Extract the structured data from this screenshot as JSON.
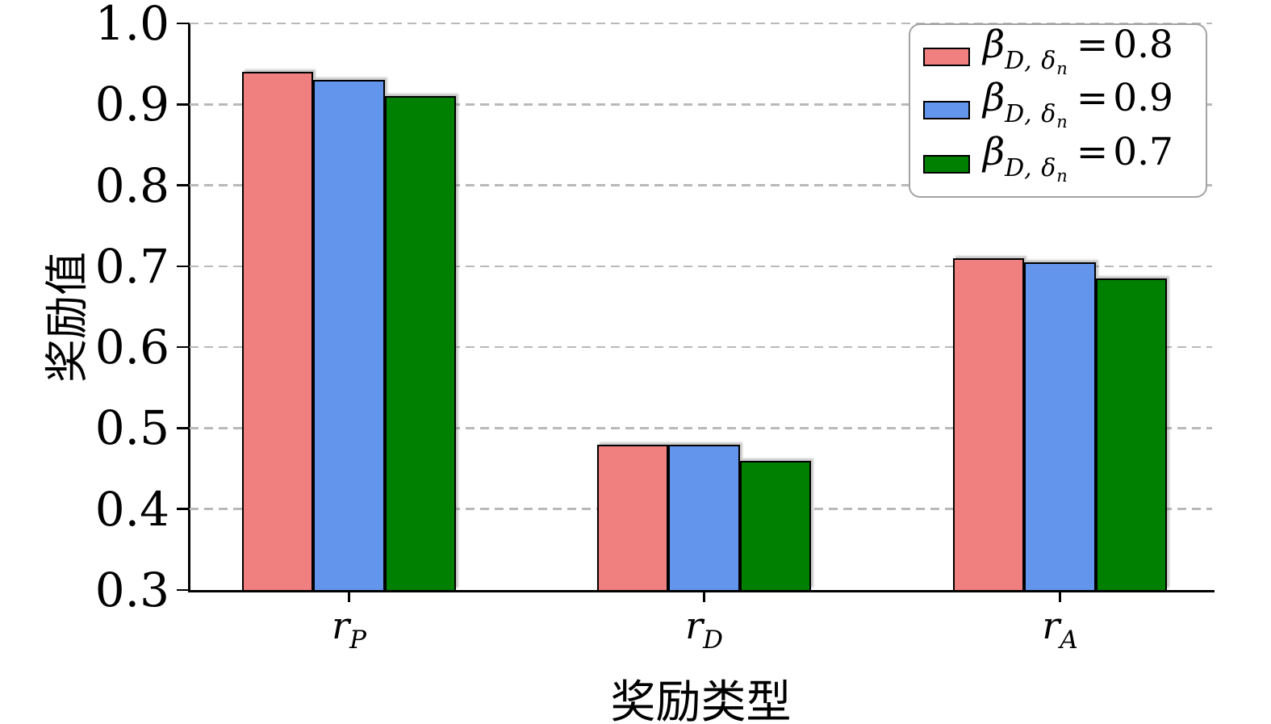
{
  "chart_data": {
    "type": "bar",
    "title": "",
    "xlabel": "奖励类型",
    "ylabel": "奖励值",
    "categories": [
      "r_P",
      "r_D",
      "r_A"
    ],
    "category_labels": [
      {
        "base": "r",
        "sub": "P"
      },
      {
        "base": "r",
        "sub": "D"
      },
      {
        "base": "r",
        "sub": "A"
      }
    ],
    "series": [
      {
        "name": "β_D,δn = 0.8",
        "color": "#f08080",
        "values": [
          0.94,
          0.48,
          0.71
        ]
      },
      {
        "name": "β_D,δn = 0.9",
        "color": "#6495ed",
        "values": [
          0.93,
          0.48,
          0.705
        ]
      },
      {
        "name": "β_D,δn = 0.7",
        "color": "#008000",
        "values": [
          0.91,
          0.46,
          0.685
        ]
      }
    ],
    "ylim": [
      0.3,
      1.0
    ],
    "ytick_values": [
      0.3,
      0.4,
      0.5,
      0.6,
      0.7,
      0.8,
      0.9,
      1.0
    ],
    "ytick_labels": [
      "0.3",
      "0.4",
      "0.5",
      "0.6",
      "0.7",
      "0.8",
      "0.9",
      "1.0"
    ],
    "grid": "horizontal-dashed",
    "grid_color": "#b9b9b9",
    "legend_position": "upper-right",
    "bar_edge_color": "#000000"
  },
  "legend": {
    "entries": [
      {
        "beta": "β",
        "sub_prefix": "D, ",
        "delta": "δ",
        "sub_suffix": "n",
        "equals": "=",
        "value": "0.8",
        "color": "#f08080"
      },
      {
        "beta": "β",
        "sub_prefix": "D, ",
        "delta": "δ",
        "sub_suffix": "n",
        "equals": "=",
        "value": "0.9",
        "color": "#6495ed"
      },
      {
        "beta": "β",
        "sub_prefix": "D, ",
        "delta": "δ",
        "sub_suffix": "n",
        "equals": "=",
        "value": "0.7",
        "color": "#008000"
      }
    ]
  },
  "axes": {
    "ylabel": "奖励值",
    "xlabel": "奖励类型"
  }
}
